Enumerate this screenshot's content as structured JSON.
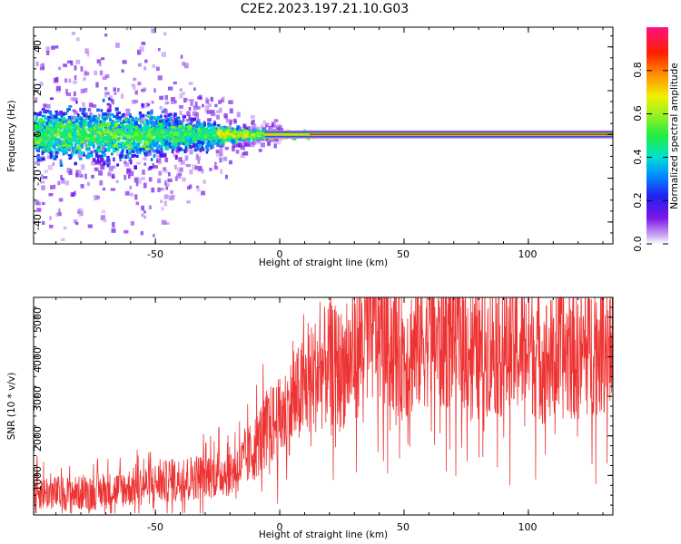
{
  "title": "C2E2.2023.197.21.10.G03",
  "chart_data": [
    {
      "type": "heatmap",
      "title": "C2E2.2023.197.21.10.G03",
      "xlabel": "Height of straight line (km)",
      "ylabel": "Frequency (Hz)",
      "xlim": [
        -99,
        134
      ],
      "ylim": [
        -50,
        49
      ],
      "xticks": [
        -50,
        0,
        50,
        100
      ],
      "xtick_labels": [
        "-50",
        "0",
        "50",
        "100"
      ],
      "yticks": [
        -40,
        -20,
        0,
        20,
        40
      ],
      "ytick_labels": [
        "-40",
        "-20",
        "0",
        "20",
        "40"
      ],
      "description_series": [
        {
          "name": "dominant frequency ridge",
          "x": [
            -99,
            -60,
            -30,
            -20,
            -5,
            0,
            134
          ],
          "y": [
            0,
            0,
            0,
            0,
            0,
            0,
            0
          ]
        },
        {
          "name": "approx frequency spread (Hz)",
          "x": [
            -99,
            -75,
            -50,
            -30,
            -22,
            -10,
            0,
            12,
            134
          ],
          "y": [
            14,
            16,
            12,
            7,
            4,
            2,
            1.5,
            1.5,
            1
          ]
        }
      ],
      "colorbar": {
        "label": "Normalized spectral amplitude",
        "range": [
          0.0,
          1.0
        ],
        "ticks": [
          0.0,
          0.2,
          0.4,
          0.6,
          0.8
        ],
        "tick_labels": [
          "0.0",
          "0.2",
          "0.4",
          "0.6",
          "0.8"
        ]
      }
    },
    {
      "type": "line",
      "xlabel": "Height of straight line (km)",
      "ylabel": "SNR (10 * v/v)",
      "xlim": [
        -99,
        134
      ],
      "ylim": [
        0,
        5500
      ],
      "xticks": [
        -50,
        0,
        50,
        100
      ],
      "xtick_labels": [
        "-50",
        "0",
        "50",
        "100"
      ],
      "yticks": [
        1000,
        2000,
        3000,
        4000,
        5000
      ],
      "ytick_labels": [
        "1000",
        "2000",
        "3000",
        "4000",
        "5000"
      ],
      "color": "#ee3333",
      "series": [
        {
          "name": "SNR",
          "x": [
            -99,
            -90,
            -80,
            -70,
            -60,
            -50,
            -40,
            -30,
            -20,
            -15,
            -10,
            -5,
            0,
            5,
            10,
            15,
            20,
            25,
            30,
            35,
            40,
            45,
            50,
            55,
            60,
            65,
            70,
            75,
            80,
            85,
            90,
            95,
            100,
            105,
            110,
            115,
            120,
            125,
            130,
            134
          ],
          "y": [
            600,
            550,
            550,
            600,
            700,
            800,
            900,
            1000,
            1100,
            1300,
            1700,
            2200,
            2400,
            2800,
            3200,
            3600,
            3800,
            3700,
            4000,
            4600,
            4700,
            4300,
            4000,
            4300,
            4600,
            4300,
            4600,
            4300,
            4000,
            4300,
            4100,
            4200,
            4300,
            4000,
            3900,
            4100,
            4000,
            4200,
            4300,
            4400
          ]
        }
      ]
    }
  ]
}
